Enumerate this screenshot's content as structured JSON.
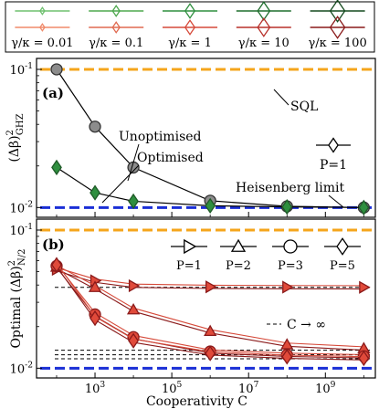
{
  "legend": {
    "entries": [
      {
        "label": "γ/κ = 0.01",
        "upper_color": "#6fc06f",
        "lower_color": "#f08a6a"
      },
      {
        "label": "γ/κ = 0.1",
        "upper_color": "#4ea84e",
        "lower_color": "#e06a50"
      },
      {
        "label": "γ/κ = 1",
        "upper_color": "#2f8f3f",
        "lower_color": "#d64a3a"
      },
      {
        "label": "γ/κ = 10",
        "upper_color": "#1f6e2d",
        "lower_color": "#b8302a"
      },
      {
        "label": "γ/κ = 100",
        "upper_color": "#144a1e",
        "lower_color": "#8a1a1a"
      }
    ]
  },
  "chart_data": [
    {
      "type": "line",
      "panel_label": "(a)",
      "ylabel_main": "(Δβ)",
      "ylabel_sup": "2",
      "ylabel_sub": "GHZ",
      "xscale": "log",
      "yscale": "log",
      "xlim": [
        30,
        20000000000
      ],
      "ylim": [
        0.0085,
        0.12
      ],
      "x_ticks": [],
      "y_ticks": [
        {
          "v": 0.1,
          "base": "10",
          "exp": "-1"
        },
        {
          "v": 0.01,
          "base": "10",
          "exp": "-2"
        }
      ],
      "x_minor_ticks": [
        1000,
        100000,
        10000000,
        1000000000
      ],
      "reference_lines": [
        {
          "name": "SQL",
          "y": 0.1,
          "color": "#f5a51b",
          "style": "dashed"
        },
        {
          "name": "Heisenberg limit",
          "y": 0.01,
          "color": "#1a2fd6",
          "style": "dashed"
        }
      ],
      "series": [
        {
          "name": "Unoptimised",
          "marker": "circle",
          "line_color": "#000000",
          "marker_fill": "#8c8c8c",
          "x": [
            100,
            1000,
            10000,
            1000000,
            100000000,
            10000000000
          ],
          "y": [
            0.1,
            0.0385,
            0.0195,
            0.0112,
            0.0102,
            0.01
          ]
        },
        {
          "name": "Optimised",
          "marker": "diamond",
          "line_color": "#000000",
          "marker_fill": "#2f8f3f",
          "x": [
            100,
            1000,
            10000,
            1000000,
            100000000,
            10000000000
          ],
          "y": [
            0.0195,
            0.0128,
            0.0111,
            0.0103,
            0.0101,
            0.01
          ]
        }
      ],
      "annotations": [
        {
          "text": "Unoptimised"
        },
        {
          "text": "Optimised"
        },
        {
          "text": "SQL"
        },
        {
          "text": "Heisenberg limit"
        },
        {
          "text": "P=1"
        }
      ]
    },
    {
      "type": "line",
      "panel_label": "(b)",
      "ylabel_prefix": "Optimal",
      "ylabel_main": "(Δβ)",
      "ylabel_sup": "2",
      "ylabel_sub": "N/2",
      "xlabel": "Cooperativity C",
      "xscale": "log",
      "yscale": "log",
      "xlim": [
        30,
        20000000000
      ],
      "ylim": [
        0.0085,
        0.12
      ],
      "x_ticks": [
        {
          "v": 1000,
          "base": "10",
          "exp": "3"
        },
        {
          "v": 100000,
          "base": "10",
          "exp": "5"
        },
        {
          "v": 10000000,
          "base": "10",
          "exp": "7"
        },
        {
          "v": 1000000000,
          "base": "10",
          "exp": "9"
        }
      ],
      "y_ticks": [
        {
          "v": 0.1,
          "base": "10",
          "exp": "-1"
        },
        {
          "v": 0.01,
          "base": "10",
          "exp": "-2"
        }
      ],
      "reference_lines": [
        {
          "name": "SQL",
          "y": 0.1,
          "color": "#f5a51b",
          "style": "dashed"
        },
        {
          "name": "Heisenberg limit",
          "y": 0.01,
          "color": "#1a2fd6",
          "style": "dashed"
        }
      ],
      "asymptotes": [
        0.0385,
        0.0135,
        0.0125,
        0.0117
      ],
      "series": [
        {
          "name": "P=1",
          "marker": "triangle-right",
          "line_color": "#b8302a",
          "marker_fill": "#e04a3a",
          "x": [
            100,
            1000,
            10000,
            1000000,
            100000000,
            10000000000
          ],
          "y": [
            0.052,
            0.043,
            0.0395,
            0.0388,
            0.0386,
            0.0385
          ]
        },
        {
          "name": "P=2",
          "marker": "triangle-up",
          "line_color": "#b8302a",
          "marker_fill": "#e04a3a",
          "x": [
            100,
            1000,
            10000,
            1000000,
            100000000,
            10000000000
          ],
          "y": [
            0.054,
            0.0385,
            0.0265,
            0.0185,
            0.0148,
            0.0139
          ]
        },
        {
          "name": "P=3",
          "marker": "circle",
          "line_color": "#b8302a",
          "marker_fill": "#e04a3a",
          "x": [
            100,
            1000,
            10000,
            1000000,
            100000000,
            10000000000
          ],
          "y": [
            0.055,
            0.0245,
            0.0168,
            0.0132,
            0.0125,
            0.0122
          ]
        },
        {
          "name": "P=5",
          "marker": "diamond",
          "line_color": "#b8302a",
          "marker_fill": "#e04a3a",
          "x": [
            100,
            1000,
            10000,
            1000000,
            100000000,
            10000000000
          ],
          "y": [
            0.056,
            0.023,
            0.0158,
            0.0128,
            0.0121,
            0.0118
          ]
        }
      ],
      "annotations": [
        {
          "text": "C → ∞"
        }
      ]
    }
  ]
}
